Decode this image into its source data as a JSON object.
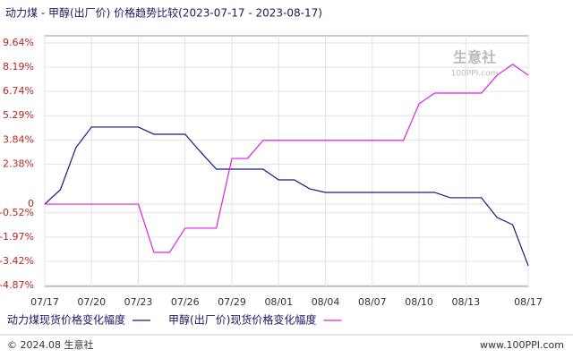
{
  "chart_data": {
    "type": "line",
    "title": "动力煤 - 甲醇(出厂价) 价格趋势比较(2023-07-17 - 2023-08-17)",
    "categories": [
      "07/17",
      null,
      null,
      "07/20",
      null,
      null,
      "07/23",
      null,
      null,
      "07/26",
      null,
      null,
      "07/29",
      null,
      null,
      "08/01",
      null,
      null,
      "08/04",
      null,
      null,
      "08/07",
      null,
      null,
      "08/10",
      null,
      null,
      "08/13",
      null,
      null,
      null,
      "08/17"
    ],
    "series": [
      {
        "name": "动力煤现货价格变化幅度",
        "color": "#1a1a80",
        "values": [
          0,
          0.86,
          3.38,
          4.61,
          4.61,
          4.61,
          4.61,
          4.18,
          4.18,
          4.18,
          3.11,
          2.09,
          2.09,
          2.09,
          2.09,
          1.45,
          1.45,
          0.91,
          0.7,
          0.7,
          0.7,
          0.7,
          0.7,
          0.7,
          0.7,
          0.7,
          0.38,
          0.38,
          0.38,
          -0.8,
          -1.23,
          -3.69
        ]
      },
      {
        "name": "甲醇(出厂价)现货价格变化幅度",
        "color": "#e020e0",
        "values": [
          0,
          0,
          0,
          0,
          0,
          0,
          0,
          -2.89,
          -2.89,
          -1.44,
          -1.44,
          -1.44,
          2.73,
          2.73,
          3.81,
          3.81,
          3.81,
          3.81,
          3.81,
          3.81,
          3.81,
          3.81,
          3.81,
          3.81,
          6.0,
          6.64,
          6.64,
          6.64,
          6.64,
          7.71,
          8.36,
          7.71
        ]
      }
    ],
    "ylim": [
      -4.87,
      9.64
    ],
    "yticks": [
      {
        "value": 9.64,
        "label": "9.64%"
      },
      {
        "value": 8.19,
        "label": "8.19%"
      },
      {
        "value": 6.74,
        "label": "6.74%"
      },
      {
        "value": 5.29,
        "label": "5.29%"
      },
      {
        "value": 3.84,
        "label": "3.84%"
      },
      {
        "value": 2.38,
        "label": "2.38%"
      },
      0,
      {
        "value": -0.52,
        "label": "-0.52%"
      },
      {
        "value": -1.97,
        "label": "-1.97%"
      },
      {
        "value": -3.42,
        "label": "-3.42%"
      },
      {
        "value": -4.87,
        "label": "-4.87%"
      }
    ],
    "grid": true,
    "watermark": "生意社",
    "watermark_url": "100PPI.com",
    "footer_left": "© 2024.08 生意社",
    "footer_right": "www.100PPI.com"
  }
}
